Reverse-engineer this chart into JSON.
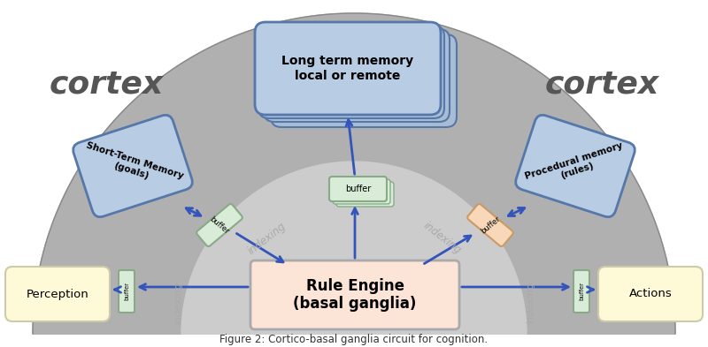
{
  "outer_arch_color": "#b0b0b0",
  "inner_arch_color": "#cccccc",
  "ltm_box_color": "#b8cce4",
  "ltm_box_shadow_color": "#a8bcd4",
  "ltm_box_edge": "#5577aa",
  "ltm_text": "Long term memory\nlocal or remote",
  "stm_box_color": "#b8cce4",
  "stm_box_edge": "#5577aa",
  "stm_text": "Short-Term Memory\n(goals)",
  "proc_box_color": "#b8cce4",
  "proc_box_edge": "#5577aa",
  "proc_text": "Procedural memory\n(rules)",
  "rule_box_color": "#fce4d6",
  "rule_box_edge": "#aaaaaa",
  "rule_text": "Rule Engine\n(basal ganglia)",
  "perception_box_color": "#fef9d7",
  "perception_box_edge": "#ccccaa",
  "perception_text": "Perception",
  "actions_box_color": "#fef9d7",
  "actions_box_edge": "#ccccaa",
  "actions_text": "Actions",
  "buffer_top_color": "#d8ecd8",
  "buffer_top_edge": "#88aa88",
  "buffer_left_color": "#d8ecd8",
  "buffer_left_edge": "#88aa88",
  "buffer_right_color": "#f8d8b8",
  "buffer_right_edge": "#cc9966",
  "buffer_perc_color": "#d8ecd8",
  "buffer_perc_edge": "#88aa88",
  "buffer_act_color": "#d8ecd8",
  "buffer_act_edge": "#88aa88",
  "arrow_color": "#3355bb",
  "indexing_color": "#aaaaaa",
  "cortex_font_size": 26,
  "title": "Figure 2: Cortico-basal ganglia circuit for cognition."
}
